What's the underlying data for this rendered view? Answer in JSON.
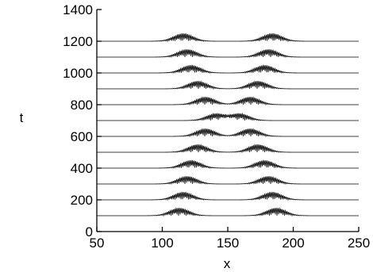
{
  "chart_data": {
    "type": "line",
    "title": "",
    "xlabel": "x",
    "ylabel": "t",
    "xlim": [
      50,
      250
    ],
    "ylim": [
      0,
      1400
    ],
    "x_ticks": [
      50,
      100,
      150,
      200,
      250
    ],
    "y_ticks": [
      0,
      200,
      400,
      600,
      800,
      1000,
      1200,
      1400
    ],
    "x_tick_labels": [
      "50",
      "100",
      "150",
      "200",
      "250"
    ],
    "y_tick_labels": [
      "0",
      "200",
      "400",
      "600",
      "800",
      "1000",
      "1200",
      "1400"
    ],
    "grid": false,
    "legend": "none",
    "line_color": "#000000",
    "series": [
      {
        "t": 100,
        "packets": [
          {
            "center": 113,
            "amplitude": 50
          },
          {
            "center": 187,
            "amplitude": 50
          }
        ]
      },
      {
        "t": 200,
        "packets": [
          {
            "center": 116,
            "amplitude": 50
          },
          {
            "center": 184,
            "amplitude": 50
          }
        ]
      },
      {
        "t": 300,
        "packets": [
          {
            "center": 119,
            "amplitude": 50
          },
          {
            "center": 181,
            "amplitude": 50
          }
        ]
      },
      {
        "t": 400,
        "packets": [
          {
            "center": 122,
            "amplitude": 50
          },
          {
            "center": 178,
            "amplitude": 50
          }
        ]
      },
      {
        "t": 500,
        "packets": [
          {
            "center": 127,
            "amplitude": 50
          },
          {
            "center": 173,
            "amplitude": 50
          }
        ]
      },
      {
        "t": 600,
        "packets": [
          {
            "center": 133,
            "amplitude": 50
          },
          {
            "center": 167,
            "amplitude": 50
          }
        ]
      },
      {
        "t": 700,
        "packets": [
          {
            "center": 141,
            "amplitude": 45
          },
          {
            "center": 159,
            "amplitude": 45
          }
        ]
      },
      {
        "t": 800,
        "packets": [
          {
            "center": 133,
            "amplitude": 50
          },
          {
            "center": 167,
            "amplitude": 50
          }
        ]
      },
      {
        "t": 900,
        "packets": [
          {
            "center": 127,
            "amplitude": 50
          },
          {
            "center": 173,
            "amplitude": 50
          }
        ]
      },
      {
        "t": 1000,
        "packets": [
          {
            "center": 122,
            "amplitude": 50
          },
          {
            "center": 178,
            "amplitude": 50
          }
        ]
      },
      {
        "t": 1100,
        "packets": [
          {
            "center": 119,
            "amplitude": 50
          },
          {
            "center": 181,
            "amplitude": 50
          }
        ]
      },
      {
        "t": 1200,
        "packets": [
          {
            "center": 116,
            "amplitude": 50
          },
          {
            "center": 184,
            "amplitude": 50
          }
        ]
      }
    ]
  }
}
